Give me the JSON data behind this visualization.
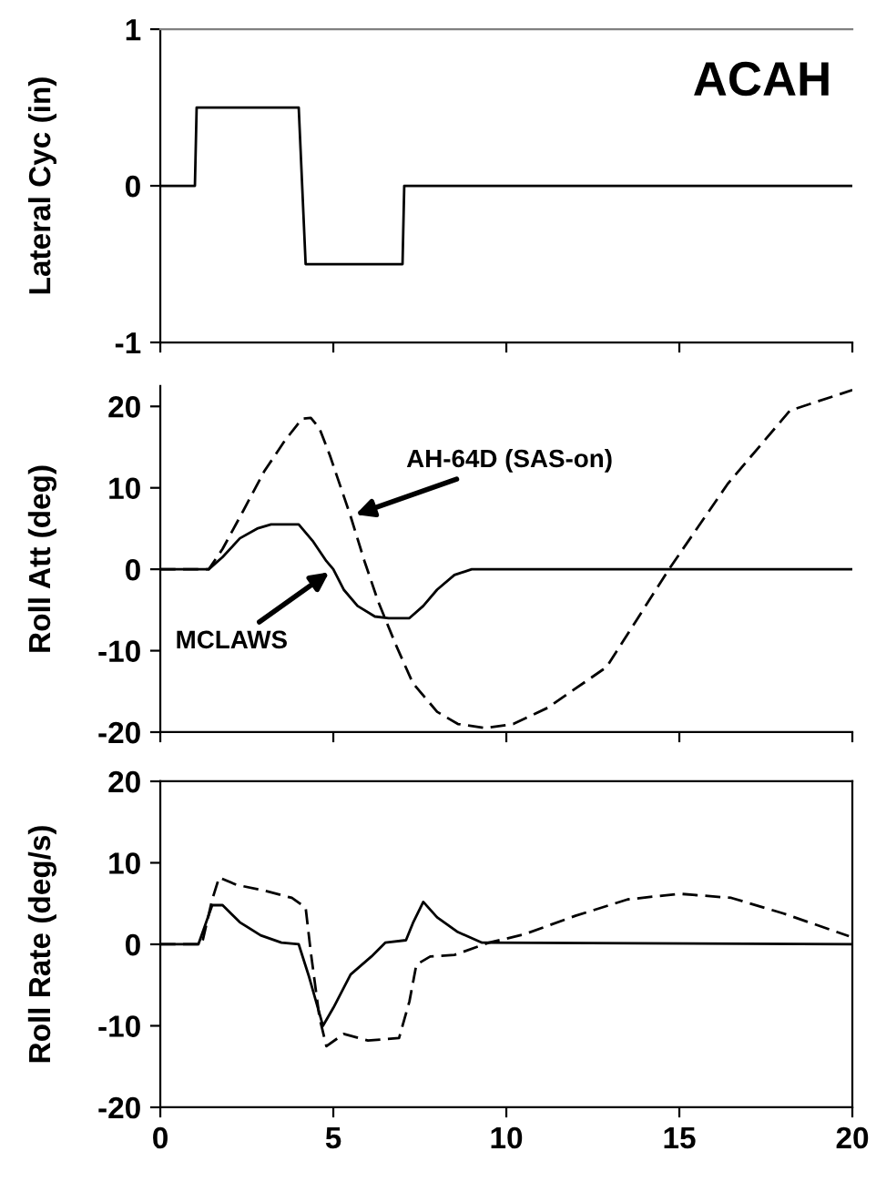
{
  "chart_data": [
    {
      "type": "line",
      "ylabel": "Lateral Cyc (in)",
      "annotations": [
        "ACAH"
      ],
      "xlim": [
        0,
        20
      ],
      "xticks": [
        0,
        5,
        10,
        15,
        20
      ],
      "ylim": [
        -1,
        1
      ],
      "yticks": [
        -1,
        0,
        1
      ],
      "tick_labels": "y",
      "grid": false,
      "legend": false,
      "series": [
        {
          "color": "#000000",
          "line_style": "solid",
          "x": [
            0,
            1.0,
            1.05,
            4.0,
            4.2,
            7.0,
            7.05,
            20
          ],
          "values": [
            0,
            0,
            0.5,
            0.5,
            -0.5,
            -0.5,
            0,
            0
          ]
        }
      ]
    },
    {
      "type": "line",
      "ylabel": "Roll Att (deg)",
      "xlim": [
        0,
        20
      ],
      "xticks": [
        0,
        5,
        10,
        15,
        20
      ],
      "ylim": [
        -20,
        22.5
      ],
      "yticks": [
        -20,
        -10,
        0,
        10,
        20
      ],
      "tick_labels": "y",
      "grid": false,
      "legend": false,
      "annotations": [
        {
          "text": "AH-64D (SAS-on)",
          "x": 5.5,
          "y": 6.5
        },
        {
          "text": "MCLAWS",
          "x": 5.0,
          "y": 0
        }
      ],
      "series": [
        {
          "color": "#000000",
          "line_style": "solid",
          "x": [
            0,
            1.4,
            1.8,
            2.3,
            2.8,
            3.2,
            4.0,
            4.4,
            4.8,
            5.0,
            5.3,
            5.7,
            6.2,
            6.6,
            7.2,
            7.6,
            8.0,
            8.5,
            9.0,
            20
          ],
          "values": [
            0,
            0,
            1.5,
            3.8,
            5.0,
            5.5,
            5.5,
            3.5,
            1,
            0,
            -2.5,
            -4.5,
            -5.8,
            -6,
            -6,
            -4.5,
            -2.5,
            -0.7,
            0,
            0
          ]
        },
        {
          "color": "#000000",
          "line_style": "dashed",
          "x": [
            0,
            1.4,
            1.8,
            2.4,
            3.0,
            3.6,
            4.1,
            4.35,
            4.6,
            4.9,
            5.3,
            5.5,
            5.9,
            6.3,
            6.8,
            7.3,
            8.0,
            8.6,
            9.4,
            10.2,
            11.2,
            12.9,
            14.7,
            16.4,
            18.2,
            20
          ],
          "values": [
            0,
            0,
            2.5,
            7.2,
            12,
            15.8,
            18.5,
            18.6,
            17.3,
            14,
            9,
            6.5,
            1,
            -4,
            -9.2,
            -14,
            -17.5,
            -19,
            -19.5,
            -19,
            -17,
            -12,
            0,
            10.5,
            19.5,
            22
          ]
        }
      ]
    },
    {
      "type": "line",
      "ylabel": "Roll Rate (deg/s)",
      "xlim": [
        0,
        20
      ],
      "xticks": [
        0,
        5,
        10,
        15,
        20
      ],
      "ylim": [
        -20,
        20
      ],
      "yticks": [
        -20,
        -10,
        0,
        10,
        20
      ],
      "grid": false,
      "legend": false,
      "series": [
        {
          "color": "#000000",
          "line_style": "solid",
          "x": [
            0,
            1.1,
            1.5,
            1.8,
            2.3,
            2.9,
            3.5,
            4.0,
            4.3,
            4.7,
            5.0,
            5.5,
            6.1,
            6.5,
            7.1,
            7.3,
            7.6,
            8.0,
            8.6,
            9.3,
            20
          ],
          "values": [
            0,
            0,
            4.8,
            4.8,
            2.7,
            1.1,
            0.2,
            0,
            -4,
            -10,
            -7.8,
            -3.7,
            -1.5,
            0.2,
            0.5,
            2.6,
            5.2,
            3.3,
            1.5,
            0.2,
            0
          ]
        },
        {
          "color": "#000000",
          "line_style": "dashed",
          "x": [
            0,
            1.2,
            1.5,
            1.7,
            2.2,
            3.0,
            3.8,
            4.2,
            4.35,
            4.6,
            4.8,
            5.3,
            6.0,
            6.9,
            7.2,
            7.4,
            7.8,
            8.5,
            9.5,
            10.5,
            12,
            13.5,
            15,
            16.5,
            18,
            19.9
          ],
          "values": [
            0,
            0,
            5.5,
            8.2,
            7.3,
            6.6,
            5.7,
            4.5,
            -1,
            -9,
            -12.5,
            -11,
            -11.8,
            -11.5,
            -7,
            -2.5,
            -1.5,
            -1.3,
            0.2,
            1.2,
            3.5,
            5.5,
            6.2,
            5.7,
            3.8,
            1
          ]
        }
      ]
    }
  ]
}
